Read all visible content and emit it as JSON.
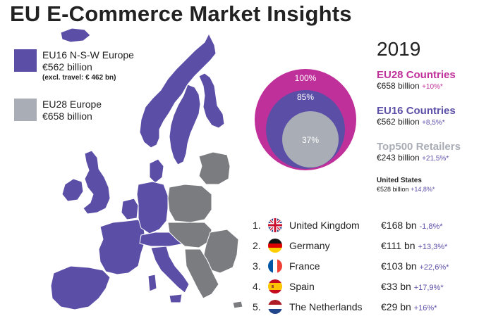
{
  "title": "EU E-Commerce Market Insights",
  "colors": {
    "eu16": "#5b4ea7",
    "eu28_circle": "#c0309a",
    "top500": "#a9adb5",
    "map_gray": "#7a7c80",
    "growth": "#5b4ea7"
  },
  "legend": {
    "eu16": {
      "title": "EU16 N-S-W Europe",
      "value": "€562 billion",
      "note": "(excl. travel: € 462 bn)"
    },
    "eu28": {
      "title": "EU28 Europe",
      "value": "€658 billion"
    }
  },
  "year": "2019",
  "circles": {
    "outer_pct": "100%",
    "middle_pct": "85%",
    "inner_pct": "37%"
  },
  "stats": [
    {
      "label": "EU28 Countries",
      "value": "€658 billion",
      "growth": "+10%*",
      "color": "#c0309a"
    },
    {
      "label": "EU16 Countries",
      "value": "€562 billion",
      "growth": "+8,5%*",
      "color": "#5b4ea7"
    },
    {
      "label": "Top500 Retailers",
      "value": "€243 billion",
      "growth": "+21,5%*",
      "color": "#a9adb5"
    },
    {
      "label": "United States",
      "value": "€528 billion",
      "growth": "+14,8%*",
      "color": "#222222"
    }
  ],
  "ranking": [
    {
      "rank": "1.",
      "flag": "uk-flag-icon",
      "country": "United Kingdom",
      "amount": "€168 bn",
      "growth": "-1,8%*"
    },
    {
      "rank": "2.",
      "flag": "germany-flag-icon",
      "country": "Germany",
      "amount": "€111 bn",
      "growth": "+13,3%*"
    },
    {
      "rank": "3.",
      "flag": "france-flag-icon",
      "country": "France",
      "amount": "€103 bn",
      "growth": "+22,6%*"
    },
    {
      "rank": "4.",
      "flag": "spain-flag-icon",
      "country": "Spain",
      "amount": "€33 bn",
      "growth": "+17,9%*"
    },
    {
      "rank": "5.",
      "flag": "netherlands-flag-icon",
      "country": "The Netherlands",
      "amount": "€29 bn",
      "growth": "+16%*"
    }
  ]
}
